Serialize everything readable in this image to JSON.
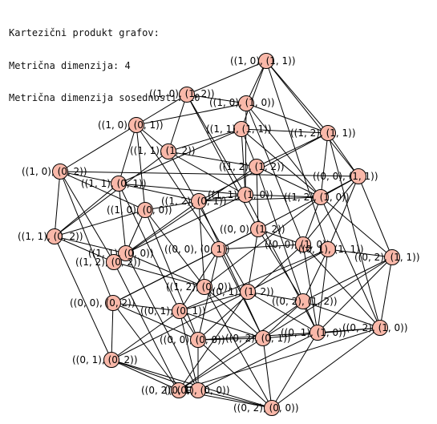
{
  "header": {
    "line1": "Kartezični produkt grafov:",
    "line2": "Metrična dimenzija: 4",
    "line3": "Metrična dimenzija sosednosti: 10"
  },
  "style": {
    "vertex_fill": "#f9b8a9",
    "vertex_stroke": "#000000",
    "edge_color": "#000000"
  },
  "graph": {
    "vertices": [
      {
        "id": "v1",
        "label": "((1, 0), (1, 1))"
      },
      {
        "id": "v2",
        "label": "((1, 0), (1, 2))"
      },
      {
        "id": "v3",
        "label": "((1, 0), (1, 0))"
      },
      {
        "id": "v4",
        "label": "((1, 0), (0, 1))"
      },
      {
        "id": "v5",
        "label": "((1, 1), (1, 1))"
      },
      {
        "id": "v6",
        "label": "((1, 2), (1, 1))"
      },
      {
        "id": "v7",
        "label": "((1, 1), (1, 2))"
      },
      {
        "id": "v8",
        "label": "((1, 0), (0, 2))"
      },
      {
        "id": "v9",
        "label": "((1, 2), (1, 2))"
      },
      {
        "id": "v10",
        "label": "((0, 0), (1, 1))"
      },
      {
        "id": "v11",
        "label": "((1, 1), (0, 1))"
      },
      {
        "id": "v12",
        "label": "((1, 1), (1, 0))"
      },
      {
        "id": "v13",
        "label": "((1, 2), (1, 0))"
      },
      {
        "id": "v14",
        "label": "((1, 2), (0, 1))"
      },
      {
        "id": "v15",
        "label": "((1, 0), (0, 0))"
      },
      {
        "id": "v16",
        "label": "((0, 0), (1, 2))"
      },
      {
        "id": "v17",
        "label": "((1, 1), (0, 2))"
      },
      {
        "id": "v18",
        "label": "((0, 0), (1, 0))"
      },
      {
        "id": "v19",
        "label": "((0, 1), (1, 1))"
      },
      {
        "id": "v20",
        "label": "((0, 0), (0, 1))"
      },
      {
        "id": "v21",
        "label": "((1, 1), (0, 0))"
      },
      {
        "id": "v22",
        "label": "((0, 2), (1, 1))"
      },
      {
        "id": "v23",
        "label": "((1, 2), (0, 2))"
      },
      {
        "id": "v24",
        "label": "((1, 2), (0, 0))"
      },
      {
        "id": "v25",
        "label": "((0, 1), (1, 2))"
      },
      {
        "id": "v26",
        "label": "((0, 0), (0, 2))"
      },
      {
        "id": "v27",
        "label": "((0, 2), (1, 2))"
      },
      {
        "id": "v28",
        "label": "((0, 1), (0, 1))"
      },
      {
        "id": "v29",
        "label": "((0, 1), (1, 0))"
      },
      {
        "id": "v30",
        "label": "((0, 2), (1, 0))"
      },
      {
        "id": "v31",
        "label": "((0, 0), (0, 0))"
      },
      {
        "id": "v32",
        "label": "((0, 2), (0, 1))"
      },
      {
        "id": "v33",
        "label": "((0, 1), (0, 2))"
      },
      {
        "id": "v34",
        "label": "((0, 2), (0, 2))"
      },
      {
        "id": "v35",
        "label": "((0, 1), (0, 0))"
      },
      {
        "id": "v36",
        "label": "((0, 2), (0, 0))"
      }
    ]
  }
}
